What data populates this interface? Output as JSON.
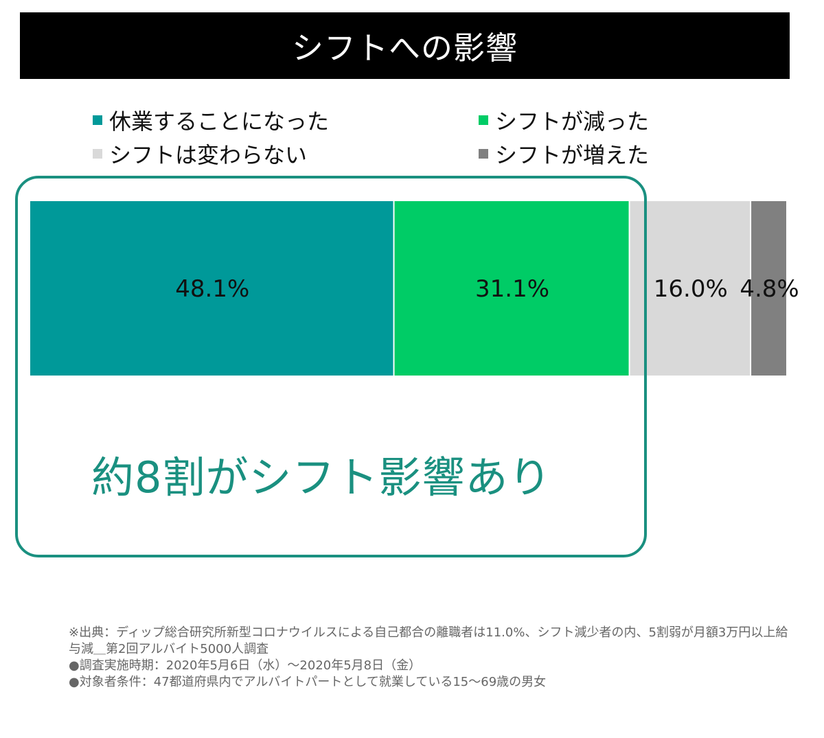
{
  "chart_data": {
    "type": "bar",
    "orientation": "horizontal-stacked-100",
    "title": "シフトへの影響",
    "series": [
      {
        "name": "休業することになった",
        "value": 48.1,
        "label": "48.1%",
        "color": "#009999"
      },
      {
        "name": "シフトが減った",
        "value": 31.1,
        "label": "31.1%",
        "color": "#00cc66"
      },
      {
        "name": "シフトは変わらない",
        "value": 16.0,
        "label": "16.0%",
        "color": "#d9d9d9"
      },
      {
        "name": "シフトが増えた",
        "value": 4.8,
        "label": "4.8%",
        "color": "#808080"
      }
    ],
    "legend_position": "top",
    "annotation": "約8割がシフト影響あり",
    "annotation_color": "#1a9080"
  },
  "footnotes": [
    "※出典：ディップ総合研究所新型コロナウイルスによる自己都合の離職者は11.0%、シフト減少者の内、5割弱が月額3万円以上給与減＿第2回アルバイト5000人調査",
    "●調査実施時期：2020年5月6日（水）～2020年5月8日（金）",
    "●対象者条件：47都道府県内でアルバイトパートとして就業している15～69歳の男女"
  ]
}
